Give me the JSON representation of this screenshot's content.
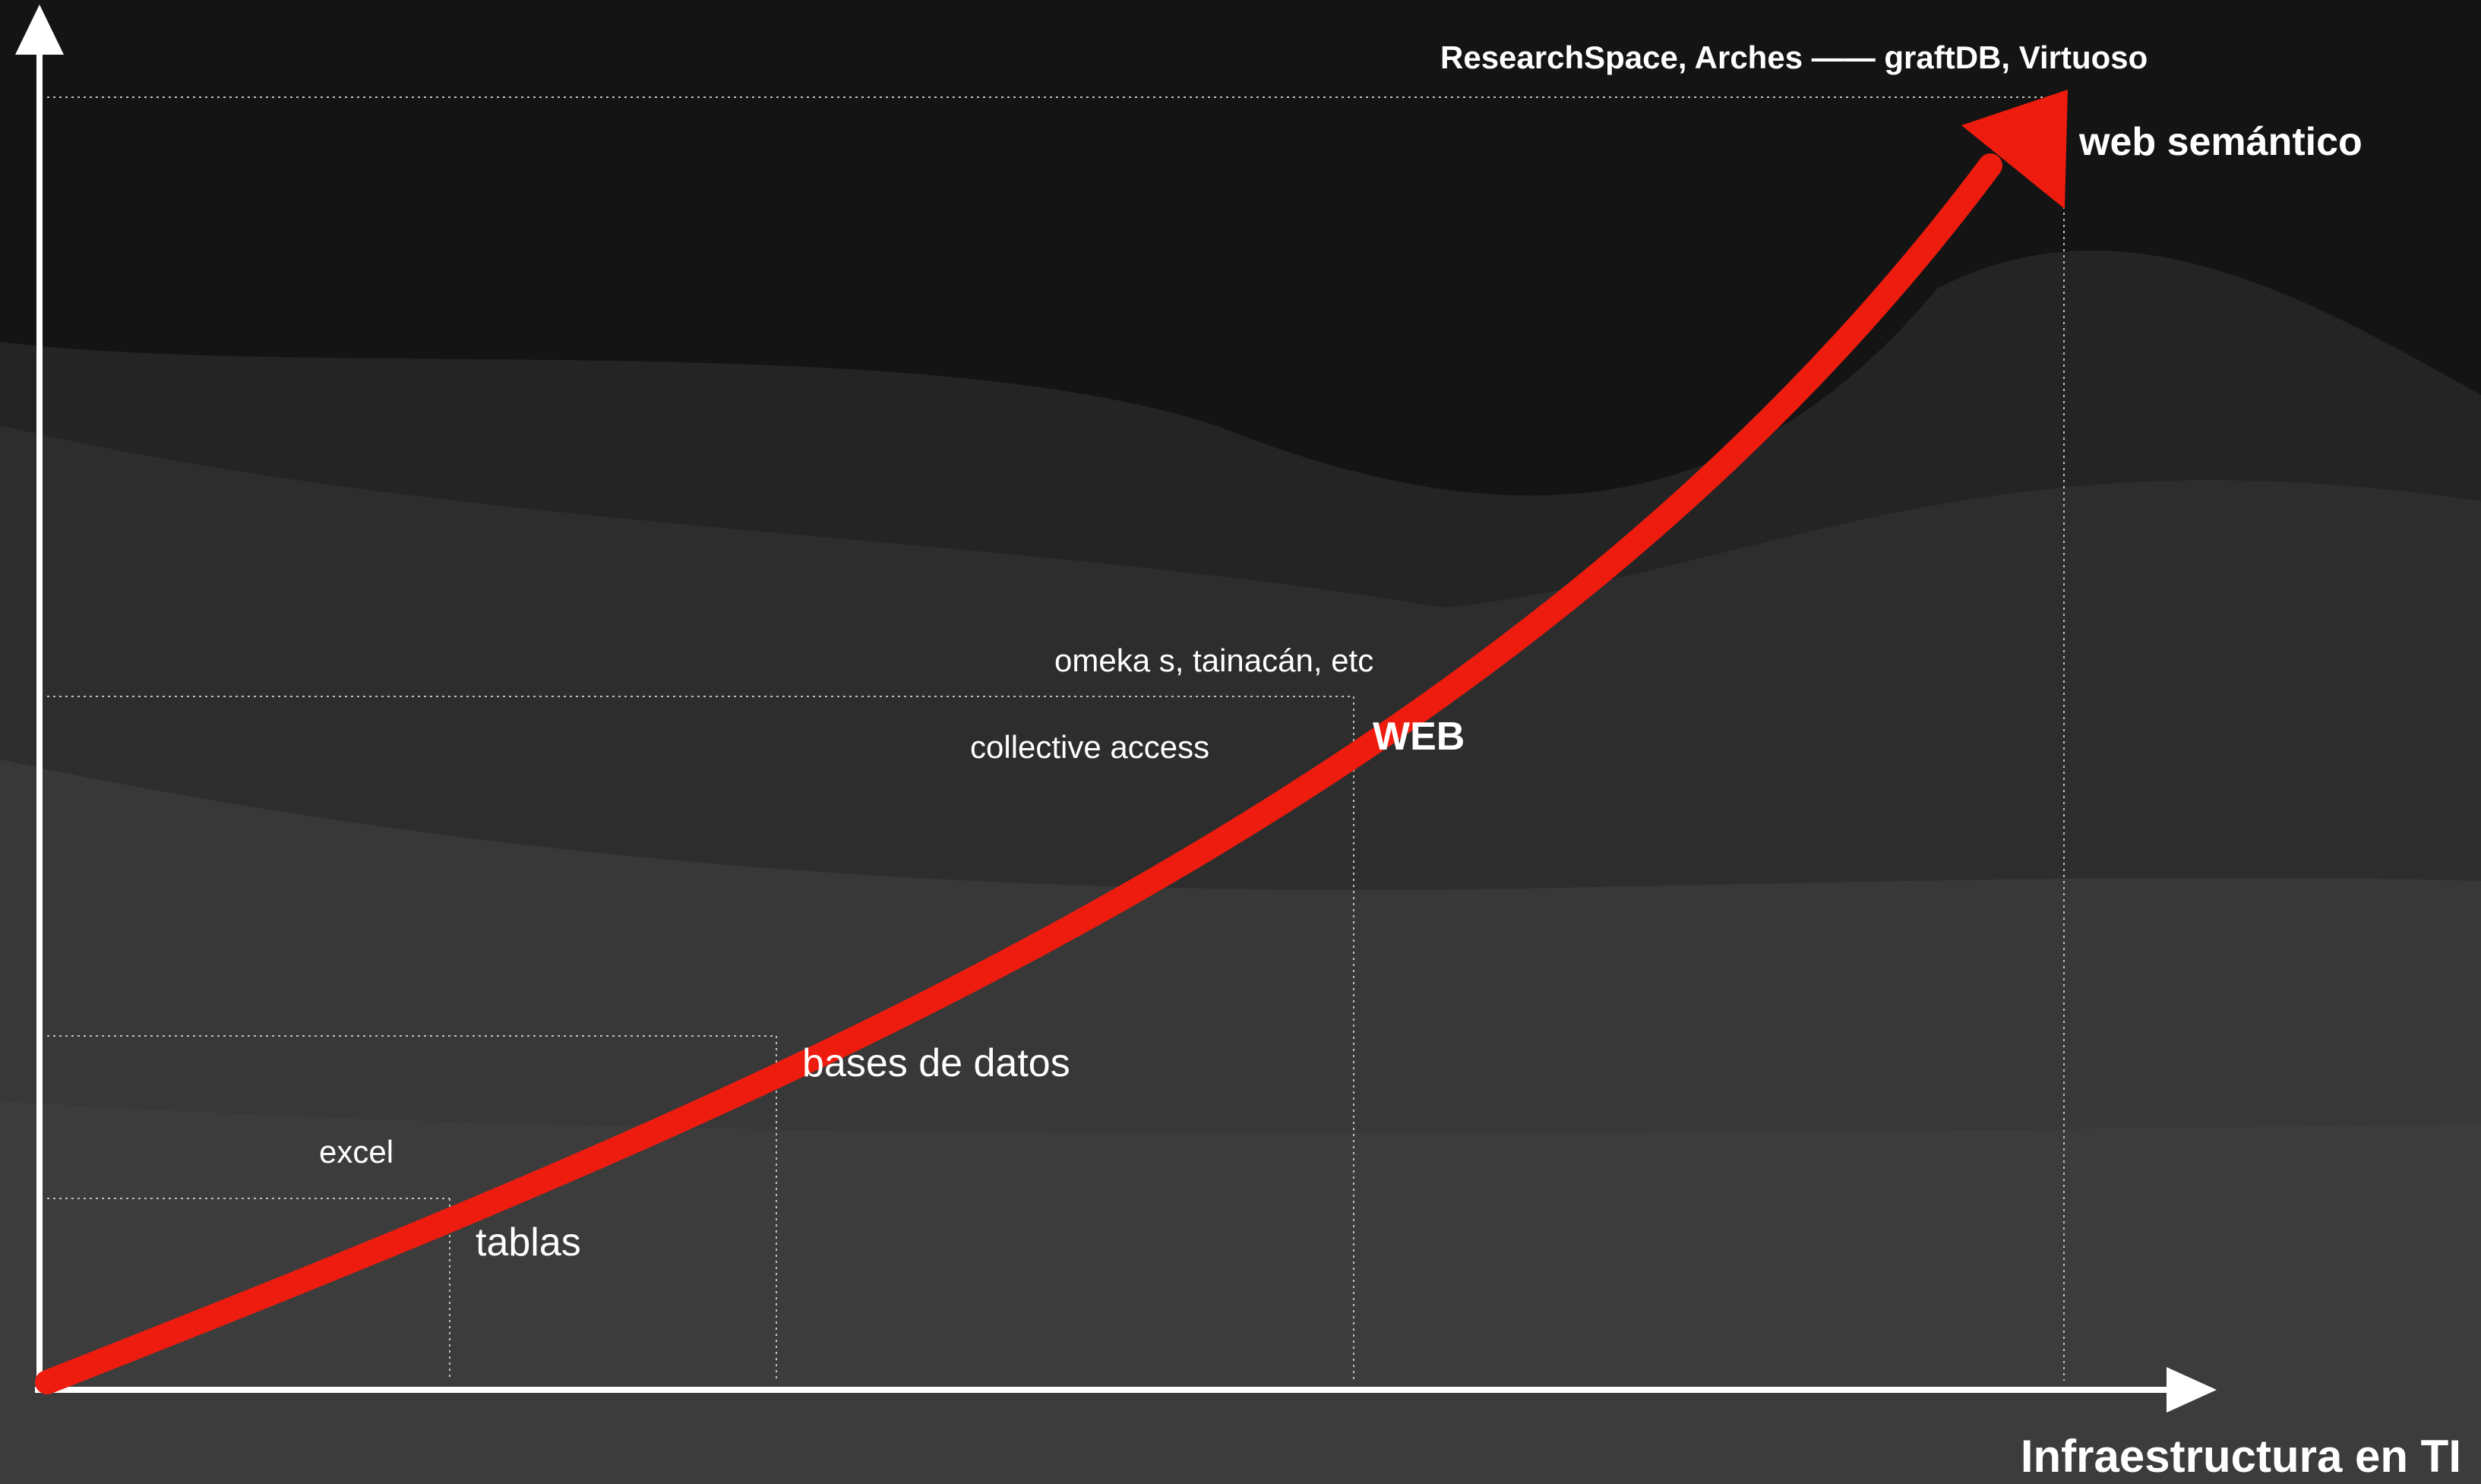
{
  "diagram": {
    "top_annotation": "ResearchSpace, Arches —— graftDB, Virtuoso",
    "x_axis_label": "Infraestructura en TI",
    "stages": [
      {
        "id": "tablas",
        "label": "tablas",
        "tools": "excel"
      },
      {
        "id": "bases",
        "label": "bases de datos",
        "tools": ""
      },
      {
        "id": "web",
        "label": "WEB",
        "tools_above": "omeka s, tainacán, etc",
        "tools_below": "collective access"
      },
      {
        "id": "semantic",
        "label": "web semántico",
        "tools": "ResearchSpace, Arches —— graftDB, Virtuoso"
      }
    ],
    "colors": {
      "background_dark": "#141414",
      "background_mid": "#2d2d2d",
      "background_light": "#3a3a3a",
      "arrow": "#ee1c0f",
      "axis": "#ffffff",
      "guide": "#bfbfbf"
    }
  }
}
